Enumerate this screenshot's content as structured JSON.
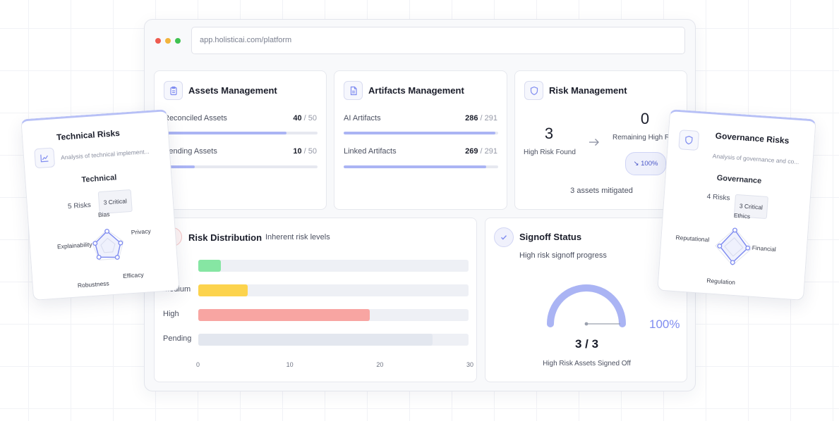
{
  "browser": {
    "url": "app.holisticai.com/platform",
    "dot_colors": [
      "#ee5b4f",
      "#f2b43c",
      "#3fc250"
    ]
  },
  "assets": {
    "title": "Assets Management",
    "icon": "clipboard-icon",
    "metrics": [
      {
        "label": "Reconciled Assets",
        "value": "40",
        "total": "/ 50",
        "fraction": 0.8
      },
      {
        "label": "Pending Assets",
        "value": "10",
        "total": "/ 50",
        "fraction": 0.2
      }
    ]
  },
  "artifacts": {
    "title": "Artifacts Management",
    "icon": "document-icon",
    "metrics": [
      {
        "label": "AI Artifacts",
        "value": "286",
        "total": "/ 291",
        "fraction": 0.983
      },
      {
        "label": "Linked Artifacts",
        "value": "269",
        "total": "/ 291",
        "fraction": 0.924
      }
    ]
  },
  "risk_mgmt": {
    "title": "Risk Management",
    "icon": "shield-icon",
    "found_value": "3",
    "found_label": "High Risk Found",
    "remaining_value": "0",
    "remaining_label": "Remaining High Risk",
    "reduction_badge": "↘ 100%",
    "mitigated_text": "3 assets mitigated"
  },
  "risk_distribution": {
    "title": "Risk Distribution",
    "subtitle": "Inherent risk levels",
    "max": 30,
    "rows": [
      {
        "label": "",
        "value": 2.5,
        "color": "#86e6a3"
      },
      {
        "label": "Medium",
        "value": 5.5,
        "color": "#fcd34d"
      },
      {
        "label": "High",
        "value": 19,
        "color": "#f8a5a2"
      },
      {
        "label": "Pending",
        "value": 26,
        "color": "#e3e7ef"
      }
    ],
    "ticks": [
      "0",
      "10",
      "20",
      "30"
    ]
  },
  "signoff": {
    "title": "Signoff Status",
    "icon": "check-icon",
    "subtitle": "High risk signoff progress",
    "percent_label": "100%",
    "fraction": 1.0,
    "count": "3 / 3",
    "caption": "High Risk Assets Signed Off"
  },
  "technical": {
    "title": "Technical Risks",
    "icon": "chart-line-icon",
    "subtitle": "Analysis of technical implement...",
    "category": "Technical",
    "risks": "5 Risks",
    "badge": "3 Critical",
    "axes": [
      "Bias",
      "Privacy",
      "Efficacy",
      "Robustness",
      "Explainability"
    ]
  },
  "governance": {
    "title": "Governance Risks",
    "icon": "shield-icon",
    "subtitle": "Analysis of governance and co...",
    "category": "Governance",
    "risks": "4 Risks",
    "badge": "3 Critical",
    "axes": [
      "Ethics",
      "Financial",
      "Regulation",
      "Reputational"
    ]
  },
  "colors": {
    "accent": "#7f8cf0",
    "accent_light": "#aab4f4",
    "track": "#e6e8f0"
  }
}
